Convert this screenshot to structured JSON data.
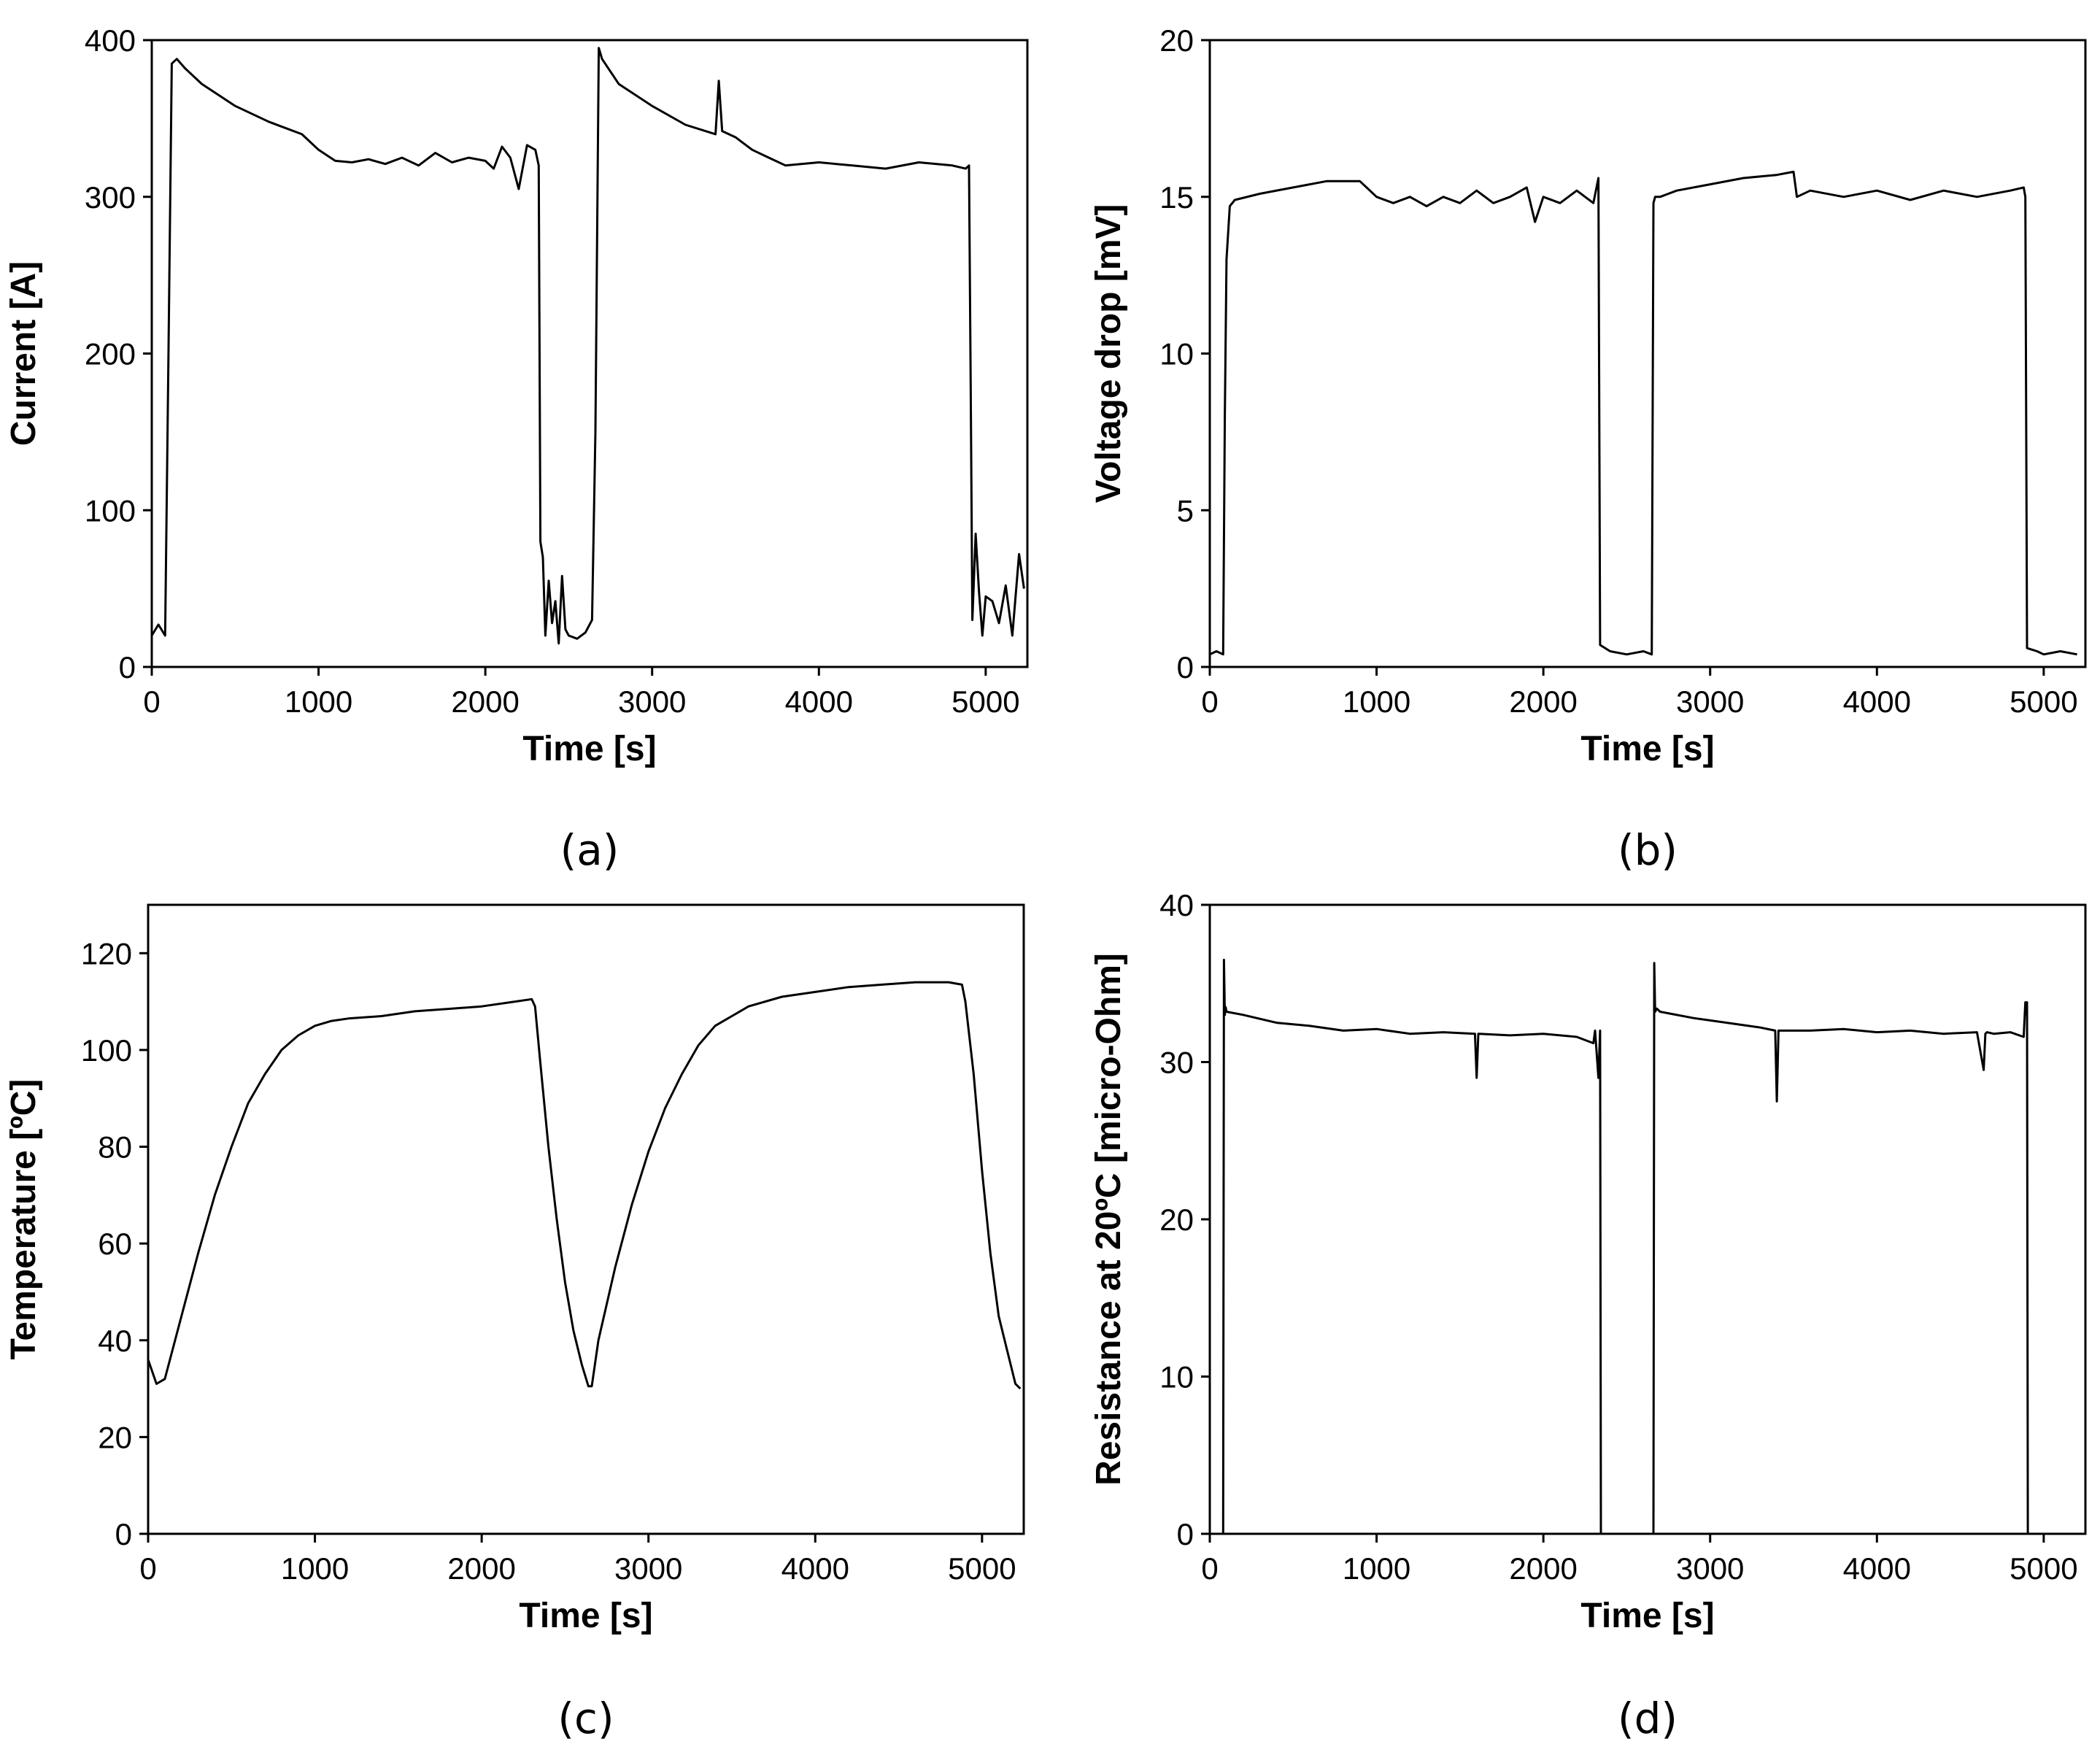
{
  "chart_data": [
    {
      "id": "a",
      "type": "line",
      "caption": "(a)",
      "xlabel": "Time [s]",
      "ylabel": "Current [A]",
      "xlim": [
        0,
        5250
      ],
      "ylim": [
        0,
        400
      ],
      "xticks": [
        0,
        1000,
        2000,
        3000,
        4000,
        5000
      ],
      "yticks": [
        0,
        100,
        200,
        300,
        400
      ],
      "series": [
        {
          "name": "Current",
          "x": [
            0,
            40,
            80,
            100,
            120,
            150,
            200,
            300,
            500,
            700,
            900,
            1000,
            1100,
            1200,
            1300,
            1400,
            1500,
            1600,
            1700,
            1800,
            1900,
            2000,
            2050,
            2100,
            2150,
            2200,
            2250,
            2300,
            2320,
            2330,
            2345,
            2360,
            2380,
            2400,
            2420,
            2440,
            2460,
            2480,
            2500,
            2550,
            2600,
            2640,
            2660,
            2680,
            2700,
            2800,
            3000,
            3200,
            3380,
            3400,
            3420,
            3500,
            3600,
            3700,
            3800,
            4000,
            4200,
            4400,
            4600,
            4800,
            4880,
            4900,
            4910,
            4920,
            4940,
            4960,
            4980,
            5000,
            5040,
            5080,
            5120,
            5160,
            5200,
            5230
          ],
          "y": [
            20,
            27,
            20,
            200,
            385,
            388,
            382,
            372,
            358,
            348,
            340,
            330,
            323,
            322,
            324,
            321,
            325,
            320,
            328,
            322,
            325,
            323,
            318,
            332,
            325,
            305,
            333,
            330,
            320,
            80,
            70,
            20,
            55,
            28,
            42,
            15,
            58,
            24,
            20,
            18,
            22,
            30,
            150,
            395,
            388,
            372,
            358,
            346,
            340,
            374,
            342,
            338,
            330,
            325,
            320,
            322,
            320,
            318,
            322,
            320,
            318,
            320,
            180,
            30,
            85,
            48,
            20,
            45,
            42,
            28,
            52,
            20,
            72,
            50
          ]
        }
      ]
    },
    {
      "id": "b",
      "type": "line",
      "caption": "(b)",
      "xlabel": "Time [s]",
      "ylabel": "Voltage drop [mV]",
      "xlim": [
        0,
        5250
      ],
      "ylim": [
        0,
        20
      ],
      "xticks": [
        0,
        1000,
        2000,
        3000,
        4000,
        5000
      ],
      "yticks": [
        0,
        5,
        10,
        15,
        20
      ],
      "series": [
        {
          "name": "Voltage drop",
          "x": [
            0,
            40,
            80,
            90,
            100,
            120,
            150,
            300,
            500,
            700,
            900,
            1000,
            1100,
            1200,
            1300,
            1400,
            1500,
            1600,
            1700,
            1800,
            1900,
            1950,
            2000,
            2100,
            2200,
            2300,
            2330,
            2340,
            2400,
            2500,
            2600,
            2650,
            2660,
            2670,
            2700,
            2800,
            3000,
            3200,
            3400,
            3500,
            3520,
            3600,
            3800,
            4000,
            4200,
            4400,
            4600,
            4800,
            4880,
            4890,
            4900,
            4960,
            5000,
            5100,
            5200
          ],
          "y": [
            0.4,
            0.5,
            0.4,
            8,
            13,
            14.7,
            14.9,
            15.1,
            15.3,
            15.5,
            15.5,
            15.0,
            14.8,
            15.0,
            14.7,
            15.0,
            14.8,
            15.2,
            14.8,
            15.0,
            15.3,
            14.2,
            15.0,
            14.8,
            15.2,
            14.8,
            15.6,
            0.7,
            0.5,
            0.4,
            0.5,
            0.4,
            14.8,
            15.0,
            15.0,
            15.2,
            15.4,
            15.6,
            15.7,
            15.8,
            15.0,
            15.2,
            15.0,
            15.2,
            14.9,
            15.2,
            15.0,
            15.2,
            15.3,
            15.0,
            0.6,
            0.5,
            0.4,
            0.5,
            0.4
          ]
        }
      ]
    },
    {
      "id": "c",
      "type": "line",
      "caption": "(c)",
      "xlabel": "Time [s]",
      "ylabel": "Temperature [ºC]",
      "xlim": [
        0,
        5250
      ],
      "ylim": [
        0,
        130
      ],
      "xticks": [
        0,
        1000,
        2000,
        3000,
        4000,
        5000
      ],
      "yticks": [
        0,
        20,
        40,
        60,
        80,
        100,
        120
      ],
      "series": [
        {
          "name": "Temperature",
          "x": [
            0,
            50,
            100,
            200,
            300,
            400,
            500,
            600,
            700,
            800,
            900,
            1000,
            1100,
            1200,
            1400,
            1600,
            1800,
            2000,
            2200,
            2300,
            2320,
            2350,
            2400,
            2450,
            2500,
            2550,
            2600,
            2640,
            2660,
            2700,
            2800,
            2900,
            3000,
            3100,
            3200,
            3300,
            3400,
            3500,
            3600,
            3800,
            4000,
            4200,
            4400,
            4600,
            4800,
            4880,
            4900,
            4950,
            5000,
            5050,
            5100,
            5150,
            5200,
            5230
          ],
          "y": [
            36,
            31,
            32,
            45,
            58,
            70,
            80,
            89,
            95,
            100,
            103,
            105,
            106,
            106.5,
            107,
            108,
            108.5,
            109,
            110,
            110.5,
            109,
            98,
            80,
            65,
            52,
            42,
            35,
            30.5,
            30.5,
            40,
            55,
            68,
            79,
            88,
            95,
            101,
            105,
            107,
            109,
            111,
            112,
            113,
            113.5,
            114,
            114,
            113.5,
            110,
            95,
            75,
            58,
            45,
            38,
            31,
            30
          ]
        }
      ]
    },
    {
      "id": "d",
      "type": "line",
      "caption": "(d)",
      "xlabel": "Time [s]",
      "ylabel": "Resistance at 20ºC [micro-Ohm]",
      "xlim": [
        0,
        5250
      ],
      "ylim": [
        0,
        40
      ],
      "xticks": [
        0,
        1000,
        2000,
        3000,
        4000,
        5000
      ],
      "yticks": [
        0,
        10,
        20,
        30,
        40
      ],
      "series": [
        {
          "name": "Resistance",
          "x": [
            80,
            85,
            90,
            95,
            100,
            200,
            400,
            600,
            800,
            1000,
            1200,
            1400,
            1590,
            1600,
            1610,
            1800,
            2000,
            2200,
            2300,
            2310,
            2330,
            2340,
            2345,
            2660,
            2665,
            2670,
            2680,
            2700,
            2900,
            3100,
            3300,
            3390,
            3400,
            3410,
            3600,
            3800,
            4000,
            4200,
            4400,
            4600,
            4640,
            4650,
            4660,
            4700,
            4800,
            4880,
            4890,
            4900,
            4905
          ],
          "y": [
            0,
            36.5,
            33,
            33.5,
            33.2,
            33.0,
            32.5,
            32.3,
            32.0,
            32.1,
            31.8,
            31.9,
            31.8,
            29,
            31.8,
            31.7,
            31.8,
            31.6,
            31.2,
            32,
            29,
            32,
            0,
            0,
            36.3,
            33.2,
            33.4,
            33.2,
            32.8,
            32.5,
            32.2,
            32.0,
            27.5,
            32.0,
            32.0,
            32.1,
            31.9,
            32.0,
            31.8,
            31.9,
            29.5,
            31.8,
            31.9,
            31.8,
            31.9,
            31.6,
            33.8,
            33.8,
            0
          ]
        }
      ]
    }
  ]
}
